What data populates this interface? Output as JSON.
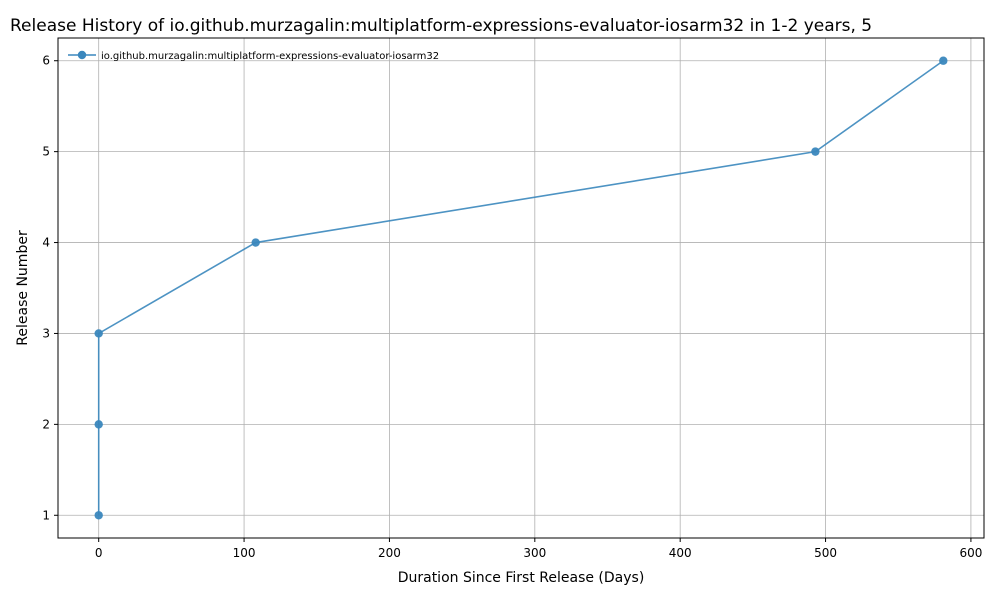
{
  "chart_data": {
    "type": "line",
    "title": "Release History of io.github.murzagalin:multiplatform-expressions-evaluator-iosarm32 in 1-2 years, 5",
    "xlabel": "Duration Since First Release (Days)",
    "ylabel": "Release Number",
    "xlim": [
      -28,
      609
    ],
    "ylim": [
      0.75,
      6.25
    ],
    "xticks": [
      0,
      100,
      200,
      300,
      400,
      500,
      600
    ],
    "yticks": [
      1,
      2,
      3,
      4,
      5,
      6
    ],
    "grid": true,
    "legend_position": "top-left",
    "series": [
      {
        "name": "io.github.murzagalin:multiplatform-expressions-evaluator-iosarm32",
        "color": "#3a87bd",
        "marker": "circle",
        "x": [
          0,
          0,
          0,
          108,
          493,
          581
        ],
        "y": [
          1,
          2,
          3,
          4,
          5,
          6
        ]
      }
    ]
  }
}
